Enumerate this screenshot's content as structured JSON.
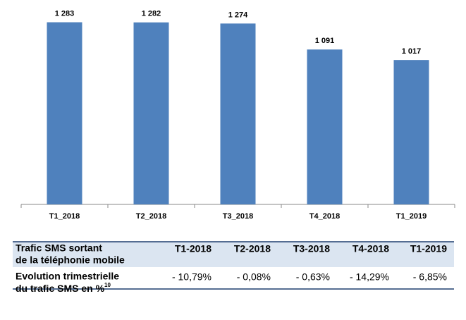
{
  "chart_data": {
    "type": "bar",
    "categories": [
      "T1_2018",
      "T2_2018",
      "T3_2018",
      "T4_2018",
      "T1_2019"
    ],
    "values": [
      1283,
      1282,
      1274,
      1091,
      1017
    ],
    "value_labels": [
      "1 283",
      "1 282",
      "1 274",
      "1 091",
      "1 017"
    ],
    "color": "#4f81bd",
    "ylim": [
      0,
      1400
    ]
  },
  "table": {
    "header_label": [
      "Trafic SMS sortant",
      "de la téléphonie mobile"
    ],
    "columns": [
      "T1-2018",
      "T2-2018",
      "T3-2018",
      "T4-2018",
      "T1-2019"
    ],
    "row_label": [
      "Evolution trimestrielle",
      "du trafic SMS en %"
    ],
    "row_note": "10",
    "row_values": [
      "- 10,79%",
      "- 0,08%",
      "- 0,63%",
      "- 14,29%",
      "- 6,85%"
    ]
  }
}
